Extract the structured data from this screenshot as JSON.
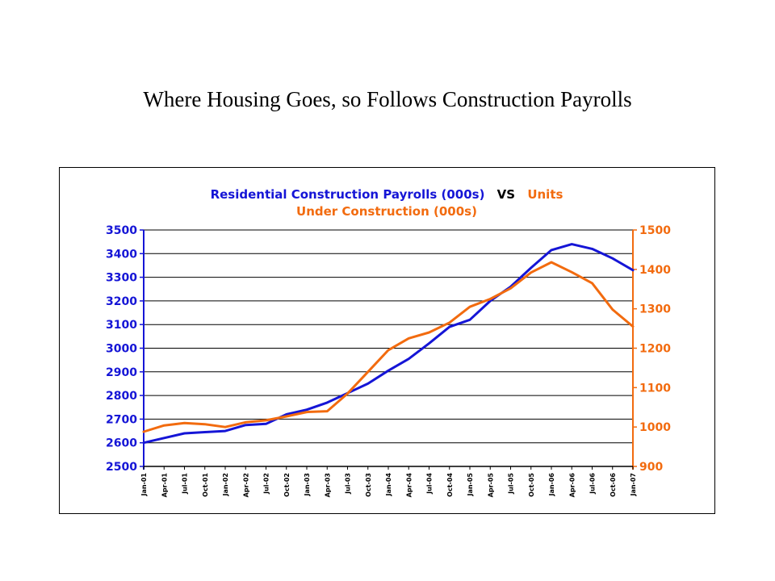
{
  "slide": {
    "title": "Where Housing Goes, so Follows Construction Payrolls"
  },
  "chart_data": {
    "type": "line",
    "title_parts": [
      {
        "text": "Residential Construction Payrolls (000s)",
        "color": "#1515d6"
      },
      {
        "text": "VS",
        "color": "#000000"
      },
      {
        "text": "Units",
        "color": "#f26b0f"
      },
      {
        "text": "Under Construction (000s)",
        "color": "#f26b0f"
      }
    ],
    "grid": true,
    "legend": "none",
    "x_tick_labels": [
      "Jan-01",
      "Apr-01",
      "Jul-01",
      "Oct-01",
      "Jan-02",
      "Apr-02",
      "Jul-02",
      "Oct-02",
      "Jan-03",
      "Apr-03",
      "Jul-03",
      "Oct-03",
      "Jan-04",
      "Apr-04",
      "Jul-04",
      "Oct-04",
      "Jan-05",
      "Apr-05",
      "Jul-05",
      "Oct-05",
      "Jan-06",
      "Apr-06",
      "Jul-06",
      "Oct-06",
      "Jan-07"
    ],
    "y_left": {
      "min": 2500,
      "max": 3500,
      "ticks": [
        2500,
        2600,
        2700,
        2800,
        2900,
        3000,
        3100,
        3200,
        3300,
        3400,
        3500
      ],
      "color": "#1515d6"
    },
    "y_right": {
      "min": 900,
      "max": 1500,
      "ticks": [
        900,
        1000,
        1100,
        1200,
        1300,
        1400,
        1500
      ],
      "color": "#f26b0f"
    },
    "series": [
      {
        "axis": "left",
        "color": "#1515d6",
        "x": [
          "Jan-01",
          "Apr-01",
          "Jul-01",
          "Oct-01",
          "Jan-02",
          "Apr-02",
          "Jul-02",
          "Oct-02",
          "Jan-03",
          "Apr-03",
          "Jul-03",
          "Oct-03",
          "Jan-04",
          "Apr-04",
          "Jul-04",
          "Oct-04",
          "Jan-05",
          "Apr-05",
          "Jul-05",
          "Oct-05",
          "Jan-06",
          "Apr-06",
          "Jul-06",
          "Oct-06",
          "Jan-07"
        ],
        "values": [
          2600,
          2620,
          2640,
          2645,
          2650,
          2675,
          2680,
          2720,
          2740,
          2770,
          2810,
          2850,
          2905,
          2955,
          3020,
          3090,
          3120,
          3200,
          3260,
          3340,
          3415,
          3440,
          3420,
          3380,
          3330
        ]
      },
      {
        "axis": "right",
        "color": "#f26b0f",
        "x": [
          "Jan-01",
          "Apr-01",
          "Jul-01",
          "Oct-01",
          "Jan-02",
          "Apr-02",
          "Jul-02",
          "Oct-02",
          "Jan-03",
          "Apr-03",
          "Jul-03",
          "Oct-03",
          "Jan-04",
          "Apr-04",
          "Jul-04",
          "Oct-04",
          "Jan-05",
          "Apr-05",
          "Jul-05",
          "Oct-05",
          "Jan-06",
          "Apr-06",
          "Jul-06",
          "Oct-06",
          "Jan-07"
        ],
        "values": [
          988,
          1004,
          1010,
          1007,
          1000,
          1012,
          1017,
          1027,
          1038,
          1040,
          1085,
          1140,
          1195,
          1225,
          1240,
          1265,
          1305,
          1325,
          1352,
          1392,
          1418,
          1393,
          1365,
          1298,
          1255
        ]
      }
    ]
  }
}
